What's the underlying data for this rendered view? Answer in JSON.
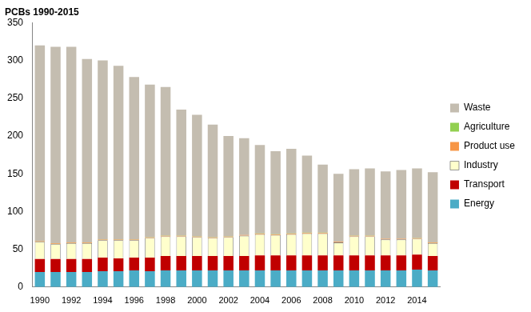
{
  "chart_data": {
    "type": "bar",
    "title": "PCBs 1990-2015",
    "stacked": true,
    "grid": false,
    "legend": "right",
    "categories": [
      "1990",
      null,
      "1992",
      null,
      "1994",
      null,
      "1996",
      null,
      "1998",
      null,
      "2000",
      null,
      "2002",
      null,
      "2004",
      null,
      "2006",
      null,
      "2008",
      null,
      "2010",
      null,
      "2012",
      null,
      "2014",
      null
    ],
    "ylim": [
      0,
      350
    ],
    "yticks": [
      0,
      50,
      100,
      150,
      200,
      250,
      300,
      350
    ],
    "series": [
      {
        "name": "Energy",
        "color": "#4bacc6",
        "values": [
          20,
          20,
          20,
          20,
          21,
          21,
          22,
          21,
          22,
          22,
          22,
          22,
          22,
          22,
          22,
          22,
          22,
          22,
          22,
          22,
          22,
          22,
          22,
          22,
          23,
          22
        ]
      },
      {
        "name": "Transport",
        "color": "#c00000",
        "values": [
          17,
          17,
          17,
          17,
          18,
          17,
          17,
          18,
          19,
          19,
          19,
          19,
          19,
          19,
          20,
          20,
          20,
          20,
          20,
          20,
          20,
          20,
          20,
          20,
          20,
          19
        ]
      },
      {
        "name": "Industry",
        "color": "#ffffcc",
        "values": [
          23,
          20,
          21,
          21,
          23,
          24,
          23,
          26,
          26,
          26,
          25,
          24,
          25,
          27,
          28,
          27,
          28,
          29,
          29,
          17,
          25,
          25,
          21,
          21,
          21,
          17
        ]
      },
      {
        "name": "Product use",
        "color": "#f79646",
        "values": [
          0.8,
          0.8,
          0.8,
          0.8,
          0.8,
          0.8,
          0.8,
          0.8,
          0.8,
          0.8,
          0.8,
          0.8,
          0.8,
          0.8,
          0.8,
          0.8,
          0.8,
          0.8,
          0.8,
          0.8,
          0.8,
          0.8,
          0.8,
          0.8,
          0.8,
          0.8
        ]
      },
      {
        "name": "Agriculture",
        "color": "#92d050",
        "values": [
          0.2,
          0.2,
          0.2,
          0.2,
          0.2,
          0.2,
          0.2,
          0.2,
          0.2,
          0.2,
          0.2,
          0.2,
          0.2,
          0.2,
          0.2,
          0.2,
          0.2,
          0.2,
          0.2,
          0.2,
          0.2,
          0.2,
          0.2,
          0.2,
          0.2,
          0.2
        ]
      },
      {
        "name": "Waste",
        "color": "#c4bdb0",
        "values": [
          259,
          260,
          259,
          243,
          237,
          230,
          215,
          202,
          197,
          167,
          161,
          149,
          133,
          128,
          117,
          110,
          112,
          102,
          90,
          90,
          88,
          89,
          89,
          91,
          92,
          93
        ]
      }
    ]
  }
}
